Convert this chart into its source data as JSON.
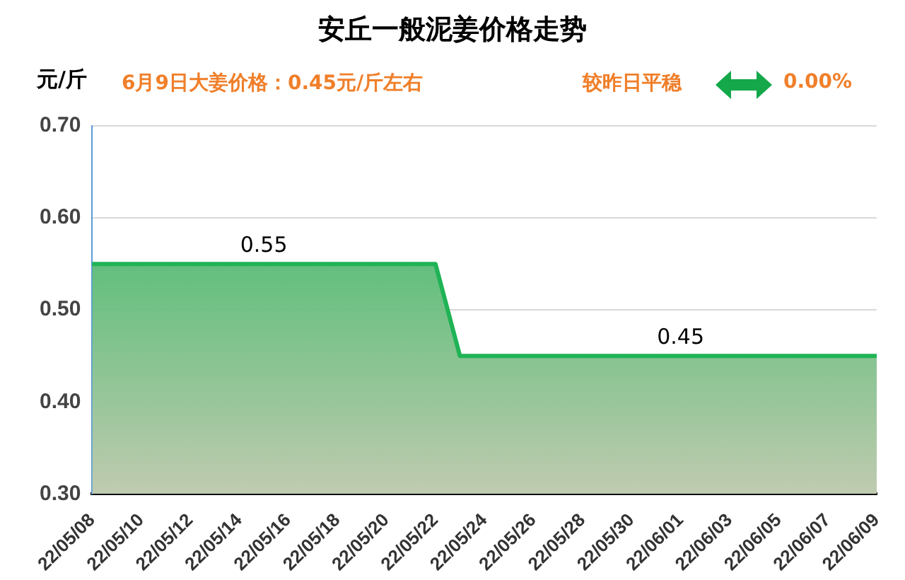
{
  "chart_data": {
    "type": "area",
    "title": "安丘一般泥姜价格走势",
    "ylabel": "元/斤",
    "annotations": [
      "6月9日大姜价格：0.45元/斤左右",
      "较昨日平稳",
      "0.00%"
    ],
    "categories": [
      "22/05/08",
      null,
      "22/05/10",
      null,
      "22/05/12",
      null,
      "22/05/14",
      null,
      "22/05/16",
      null,
      "22/05/18",
      null,
      "22/05/20",
      null,
      "22/05/22",
      null,
      "22/05/24",
      null,
      "22/05/26",
      null,
      "22/05/28",
      null,
      "22/05/30",
      null,
      "22/06/01",
      null,
      "22/06/03",
      null,
      "22/06/05",
      null,
      "22/06/07",
      null,
      "22/06/09"
    ],
    "series": [
      {
        "color": "#1fb355",
        "values": [
          0.55,
          0.55,
          0.55,
          0.55,
          0.55,
          0.55,
          0.55,
          0.55,
          0.55,
          0.55,
          0.55,
          0.55,
          0.55,
          0.55,
          0.55,
          0.45,
          0.45,
          0.45,
          0.45,
          0.45,
          0.45,
          0.45,
          0.45,
          0.45,
          0.45,
          0.45,
          0.45,
          0.45,
          0.45,
          0.45,
          0.45,
          0.45,
          0.45
        ],
        "value_labels": [
          null,
          null,
          null,
          null,
          null,
          null,
          null,
          "0.55",
          null,
          null,
          null,
          null,
          null,
          null,
          null,
          null,
          null,
          null,
          null,
          null,
          null,
          null,
          null,
          null,
          "0.45",
          null,
          null,
          null,
          null,
          null,
          null,
          null,
          null
        ]
      }
    ],
    "ylim": [
      0.3,
      0.7
    ],
    "yticks": [
      {
        "value": 0.3,
        "label": "0.30"
      },
      {
        "value": 0.4,
        "label": "0.40"
      },
      {
        "value": 0.5,
        "label": "0.50"
      },
      {
        "value": 0.6,
        "label": "0.60"
      },
      {
        "value": 0.7,
        "label": "0.70"
      }
    ],
    "grid": "y",
    "legend": false,
    "marker": "none"
  }
}
